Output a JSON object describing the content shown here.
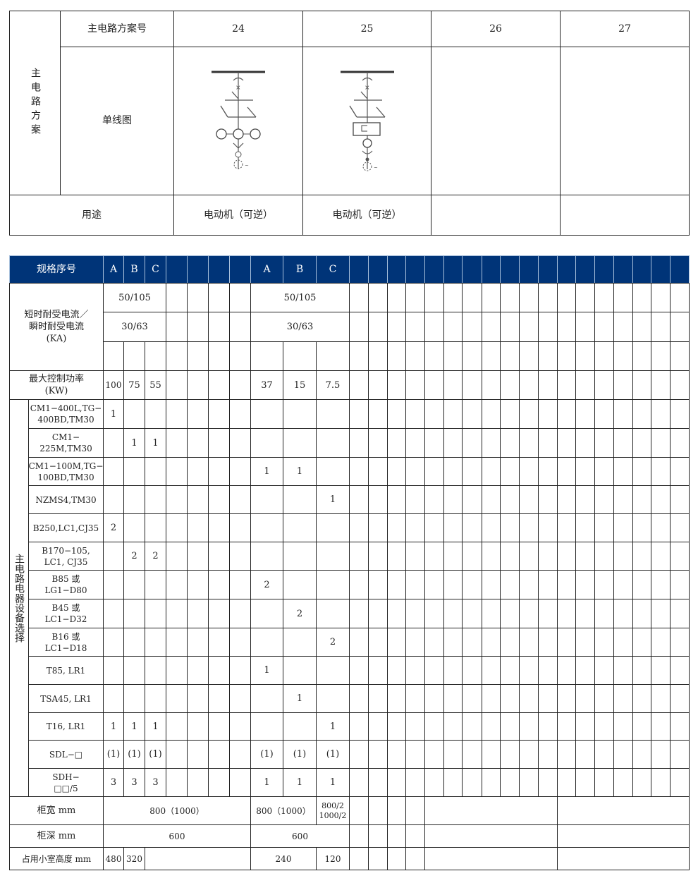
{
  "scheme_table": {
    "side_label": "主电路方案",
    "scheme_no_label": "主电路方案号",
    "schemes": [
      "24",
      "25",
      "26",
      "27"
    ],
    "single_line_label": "单线图",
    "purpose_label": "用途",
    "purposes": [
      "电动机（可逆）",
      "电动机（可逆）",
      "",
      ""
    ],
    "diagram_icons": [
      "single-line-diagram-reversible-motor-24",
      "single-line-diagram-reversible-motor-25"
    ]
  },
  "spec_table": {
    "colors": {
      "header_bg": "#003478",
      "header_text": "#ffffff"
    },
    "header_label": "规格序号",
    "group1_cols": [
      "A",
      "B",
      "C"
    ],
    "group2_cols": [
      "A",
      "B",
      "C"
    ],
    "current_label": "短时耐受电流／\n瞬时耐受电流\n(KA)",
    "current_row1": [
      "50/105",
      "50/105"
    ],
    "current_row2": [
      "30/63",
      "30/63"
    ],
    "power_label": "最大控制功率\n(KW)",
    "power_values": [
      "100",
      "75",
      "55",
      "37",
      "15",
      "7.5"
    ],
    "equipment_label": "主电路电器设备选择",
    "items": [
      {
        "name": "CM1−400L,TG−\n400BD,TM30",
        "values": [
          "1",
          "",
          "",
          "",
          "",
          ""
        ]
      },
      {
        "name": "CM1−\n225M,TM30",
        "values": [
          "",
          "1",
          "1",
          "",
          "",
          ""
        ]
      },
      {
        "name": "CM1−100M,TG−\n100BD,TM30",
        "values": [
          "",
          "",
          "",
          "1",
          "1",
          ""
        ]
      },
      {
        "name": "NZMS4,TM30",
        "values": [
          "",
          "",
          "",
          "",
          "",
          "1"
        ]
      },
      {
        "name": "B250,LC1,CJ35",
        "values": [
          "2",
          "",
          "",
          "",
          "",
          ""
        ]
      },
      {
        "name": "B170−105,\nLC1, CJ35",
        "values": [
          "",
          "2",
          "2",
          "",
          "",
          ""
        ]
      },
      {
        "name": "B85 或\nLG1−D80",
        "values": [
          "",
          "",
          "",
          "2",
          "",
          ""
        ]
      },
      {
        "name": "B45 或\nLC1−D32",
        "values": [
          "",
          "",
          "",
          "",
          "2",
          ""
        ]
      },
      {
        "name": "B16 或\nLC1−D18",
        "values": [
          "",
          "",
          "",
          "",
          "",
          "2"
        ]
      },
      {
        "name": "T85, LR1",
        "values": [
          "",
          "",
          "",
          "1",
          "",
          ""
        ]
      },
      {
        "name": "TSA45, LR1",
        "values": [
          "",
          "",
          "",
          "",
          "1",
          ""
        ]
      },
      {
        "name": "T16, LR1",
        "values": [
          "1",
          "1",
          "1",
          "",
          "",
          "1"
        ]
      },
      {
        "name": "SDL−□",
        "values": [
          "(1)",
          "(1)",
          "(1)",
          "(1)",
          "(1)",
          "(1)"
        ]
      },
      {
        "name": "SDH−\n□□/5",
        "values": [
          "3",
          "3",
          "3",
          "1",
          "1",
          "1"
        ]
      }
    ],
    "width_label": "柜宽 mm",
    "width_values": [
      "800（1000）",
      "800（1000）",
      "800/2\n1000/2"
    ],
    "depth_label": "柜深 mm",
    "depth_values": [
      "600",
      "600"
    ],
    "height_label": "占用小室高度 mm",
    "height_values": [
      "480",
      "320",
      "240",
      "120"
    ]
  }
}
